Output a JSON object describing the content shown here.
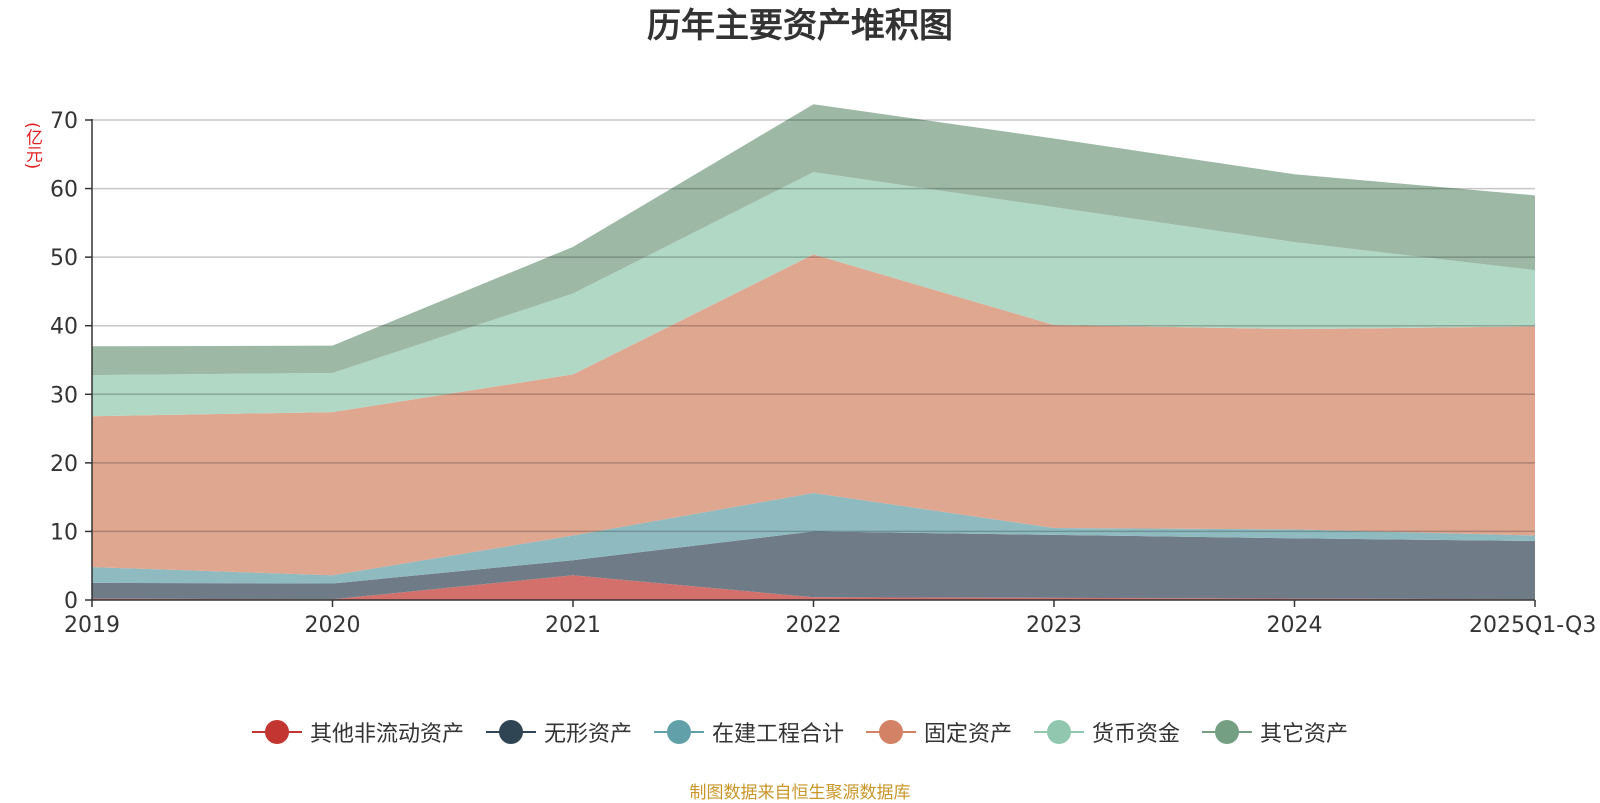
{
  "header": {
    "title": "历年主要资产堆积图",
    "unit_label": "(亿元)"
  },
  "footer": {
    "source": "制图数据来自恒生聚源数据库"
  },
  "chart_data": {
    "type": "area",
    "stacked": true,
    "title": "历年主要资产堆积图",
    "ylabel": "(亿元)",
    "xlabel": "",
    "ylim": [
      0,
      70
    ],
    "yticks": [
      0,
      10,
      20,
      30,
      40,
      50,
      60,
      70
    ],
    "grid": true,
    "legend_position": "bottom",
    "categories": [
      "2019",
      "2020",
      "2021",
      "2022",
      "2023",
      "2024",
      "2025Q1-Q3"
    ],
    "series": [
      {
        "name": "其他非流动资产",
        "color": "#c23531",
        "fill": "#d4706c",
        "values": [
          0.2,
          0.1,
          3.6,
          0.4,
          0.3,
          0.2,
          0.1
        ]
      },
      {
        "name": "无形资产",
        "color": "#2f4554",
        "fill": "#6f7c87",
        "values": [
          2.3,
          2.3,
          2.2,
          9.6,
          9.2,
          8.8,
          8.5
        ]
      },
      {
        "name": "在建工程合计",
        "color": "#61a0a8",
        "fill": "#8fbbc0",
        "values": [
          2.3,
          1.2,
          3.6,
          5.6,
          1.0,
          1.3,
          0.8
        ]
      },
      {
        "name": "固定资产",
        "color": "#d48265",
        "fill": "#dfa690",
        "values": [
          22.0,
          23.8,
          23.5,
          34.8,
          29.6,
          29.2,
          30.5
        ]
      },
      {
        "name": "货币资金",
        "color": "#91c7ae",
        "fill": "#b1d8c5",
        "values": [
          6.0,
          5.7,
          11.8,
          12.0,
          17.2,
          12.7,
          8.2
        ]
      },
      {
        "name": "其它资产",
        "color": "#749f83",
        "fill": "#9db9a6",
        "values": [
          4.2,
          4.0,
          6.8,
          9.9,
          10.0,
          9.9,
          10.9
        ]
      }
    ]
  }
}
